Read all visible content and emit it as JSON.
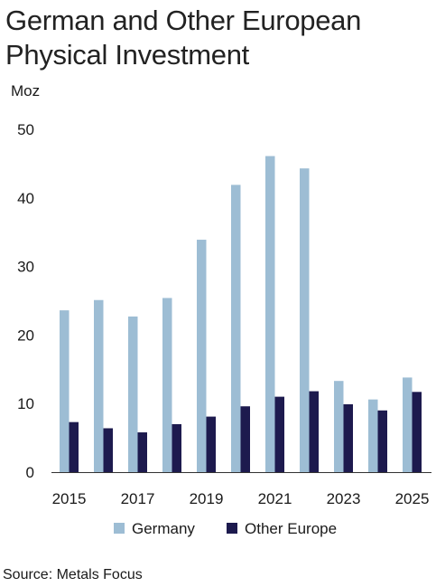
{
  "title": "German and Other European Physical Investment",
  "source": "Source: Metals Focus",
  "colors": {
    "germany": "#9dbdd4",
    "other_europe": "#1d1a4e",
    "axis": "#333333"
  },
  "chart_data": {
    "type": "bar",
    "title": "German and Other European Physical Investment",
    "xlabel": "",
    "ylabel": "Moz",
    "ylim": [
      0,
      50
    ],
    "yticks": [
      0,
      10,
      20,
      30,
      40,
      50
    ],
    "categories": [
      "2015",
      "2016",
      "2017",
      "2018",
      "2019",
      "2020",
      "2021",
      "2022",
      "2023",
      "2024",
      "2025"
    ],
    "xtick_labels": [
      "2015",
      "2017",
      "2019",
      "2021",
      "2023",
      "2025"
    ],
    "grid": false,
    "legend": "bottom",
    "series": [
      {
        "name": "Germany",
        "values": [
          23.6,
          25.1,
          22.7,
          25.4,
          33.9,
          41.9,
          46.1,
          44.3,
          13.3,
          10.6,
          13.8
        ]
      },
      {
        "name": "Other Europe",
        "values": [
          7.3,
          6.4,
          5.8,
          7.0,
          8.1,
          9.6,
          11.0,
          11.8,
          9.9,
          9.0,
          11.7
        ]
      }
    ]
  }
}
